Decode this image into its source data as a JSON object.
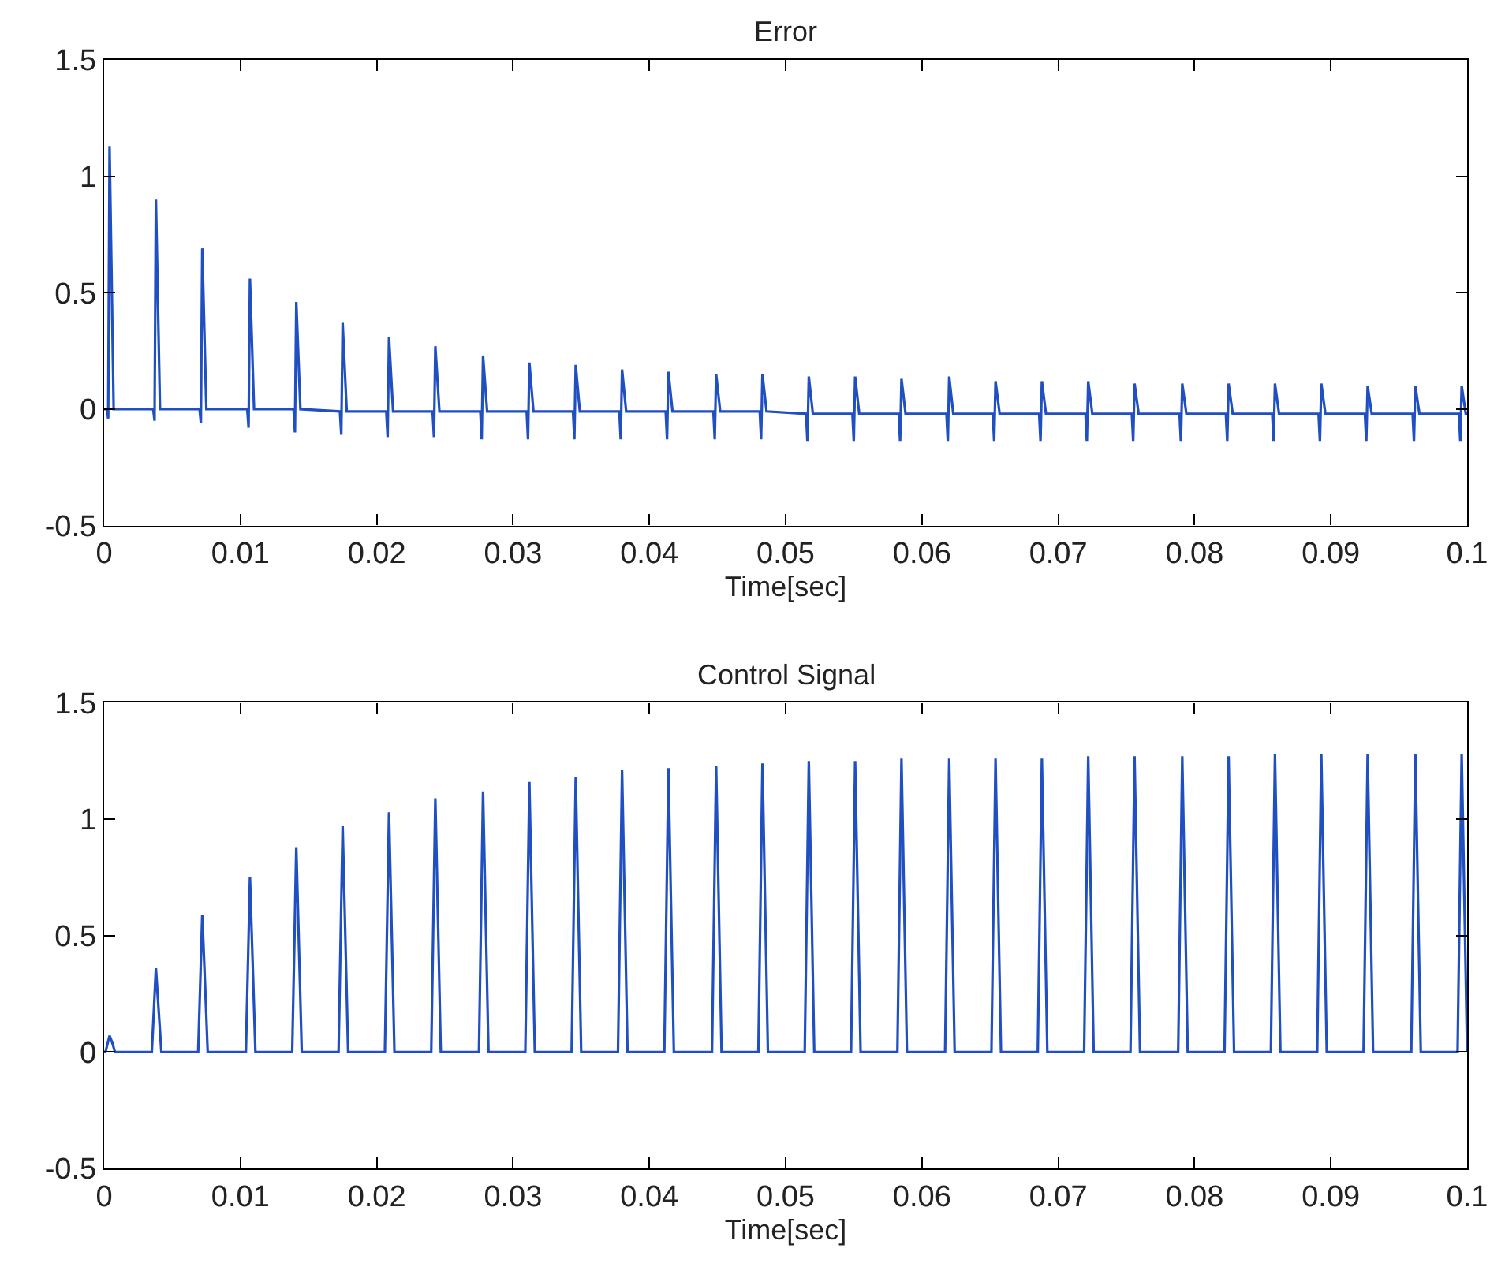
{
  "chart_data": [
    {
      "type": "line",
      "title": "Error",
      "xlabel": "Time[sec]",
      "xlim": [
        0,
        0.1
      ],
      "xticks": [
        0,
        0.01,
        0.02,
        0.03,
        0.04,
        0.05,
        0.06,
        0.07,
        0.08,
        0.09,
        0.1
      ],
      "ylim": [
        -0.5,
        1.5
      ],
      "yticks": [
        -0.5,
        0,
        0.5,
        1,
        1.5
      ],
      "marker": "none",
      "line_style": "solid",
      "series": [
        {
          "color": "#1f4fc0",
          "x": [
            0,
            0.0002,
            0.0003,
            0.0004,
            0.0007,
            0.0036,
            0.0037,
            0.0038,
            0.0041,
            0.007,
            0.0071,
            0.0072,
            0.0075,
            0.0105,
            0.0106,
            0.0107,
            0.011,
            0.0139,
            0.014,
            0.0141,
            0.0144,
            0.0173,
            0.0174,
            0.0175,
            0.0178,
            0.0207,
            0.0208,
            0.0209,
            0.0212,
            0.0241,
            0.0242,
            0.0243,
            0.0246,
            0.0276,
            0.0277,
            0.0278,
            0.0281,
            0.031,
            0.0311,
            0.0312,
            0.0315,
            0.0344,
            0.0345,
            0.0346,
            0.0349,
            0.0378,
            0.0379,
            0.038,
            0.0383,
            0.0412,
            0.0413,
            0.0414,
            0.0417,
            0.0447,
            0.0448,
            0.0449,
            0.0452,
            0.0481,
            0.0482,
            0.0483,
            0.0486,
            0.0515,
            0.0516,
            0.0517,
            0.052,
            0.0549,
            0.055,
            0.0551,
            0.0554,
            0.0583,
            0.0584,
            0.0585,
            0.0588,
            0.0618,
            0.0619,
            0.062,
            0.0623,
            0.0652,
            0.0653,
            0.0654,
            0.0657,
            0.0686,
            0.0687,
            0.0688,
            0.0691,
            0.072,
            0.0721,
            0.0722,
            0.0725,
            0.0754,
            0.0755,
            0.0756,
            0.0759,
            0.0789,
            0.079,
            0.0791,
            0.0794,
            0.0823,
            0.0824,
            0.0825,
            0.0828,
            0.0857,
            0.0858,
            0.0859,
            0.0862,
            0.0891,
            0.0892,
            0.0893,
            0.0896,
            0.0925,
            0.0926,
            0.0927,
            0.093,
            0.096,
            0.0961,
            0.0962,
            0.0965,
            0.0994,
            0.0995,
            0.0996,
            0.0999,
            0.1
          ],
          "values": [
            0,
            0,
            -0.04,
            1.13,
            0,
            0,
            -0.05,
            0.9,
            0,
            0,
            -0.06,
            0.69,
            0,
            0,
            -0.08,
            0.56,
            0,
            0,
            -0.1,
            0.46,
            0,
            -0.01,
            -0.11,
            0.37,
            -0.01,
            -0.01,
            -0.12,
            0.31,
            -0.01,
            -0.01,
            -0.12,
            0.27,
            -0.01,
            -0.01,
            -0.13,
            0.23,
            -0.01,
            -0.01,
            -0.13,
            0.2,
            -0.01,
            -0.01,
            -0.13,
            0.19,
            -0.01,
            -0.01,
            -0.13,
            0.17,
            -0.01,
            -0.01,
            -0.13,
            0.16,
            -0.01,
            -0.01,
            -0.13,
            0.15,
            -0.01,
            -0.01,
            -0.13,
            0.15,
            -0.01,
            -0.02,
            -0.14,
            0.14,
            -0.02,
            -0.02,
            -0.14,
            0.14,
            -0.02,
            -0.02,
            -0.14,
            0.13,
            -0.02,
            -0.02,
            -0.14,
            0.14,
            -0.02,
            -0.02,
            -0.14,
            0.12,
            -0.02,
            -0.02,
            -0.14,
            0.12,
            -0.02,
            -0.02,
            -0.14,
            0.12,
            -0.02,
            -0.02,
            -0.14,
            0.11,
            -0.02,
            -0.02,
            -0.14,
            0.11,
            -0.02,
            -0.02,
            -0.14,
            0.11,
            -0.02,
            -0.02,
            -0.14,
            0.11,
            -0.02,
            -0.02,
            -0.14,
            0.11,
            -0.02,
            -0.02,
            -0.14,
            0.1,
            -0.02,
            -0.02,
            -0.14,
            0.1,
            -0.02,
            -0.02,
            -0.14,
            0.1,
            -0.02,
            -0.02
          ]
        }
      ]
    },
    {
      "type": "line",
      "title": "Control Signal",
      "xlabel": "Time[sec]",
      "xlim": [
        0,
        0.1
      ],
      "xticks": [
        0,
        0.01,
        0.02,
        0.03,
        0.04,
        0.05,
        0.06,
        0.07,
        0.08,
        0.09,
        0.1
      ],
      "ylim": [
        -0.5,
        1.5
      ],
      "yticks": [
        -0.5,
        0,
        0.5,
        1,
        1.5
      ],
      "marker": "none",
      "line_style": "solid",
      "series": [
        {
          "color": "#1f4fc0",
          "x": [
            0,
            0.0001,
            0.0004,
            0.0006,
            0.0008,
            0.0035,
            0.0038,
            0.004,
            0.0042,
            0.0069,
            0.0072,
            0.0074,
            0.0076,
            0.0104,
            0.0107,
            0.0109,
            0.0111,
            0.0138,
            0.0141,
            0.0143,
            0.0145,
            0.0172,
            0.0175,
            0.0177,
            0.0179,
            0.0206,
            0.0209,
            0.0211,
            0.0213,
            0.024,
            0.0243,
            0.0245,
            0.0247,
            0.0275,
            0.0278,
            0.028,
            0.0282,
            0.0309,
            0.0312,
            0.0314,
            0.0316,
            0.0343,
            0.0346,
            0.0348,
            0.035,
            0.0377,
            0.038,
            0.0382,
            0.0384,
            0.0411,
            0.0414,
            0.0416,
            0.0418,
            0.0446,
            0.0449,
            0.0451,
            0.0453,
            0.048,
            0.0483,
            0.0485,
            0.0487,
            0.0514,
            0.0517,
            0.0519,
            0.0521,
            0.0548,
            0.0551,
            0.0553,
            0.0555,
            0.0582,
            0.0585,
            0.0587,
            0.0589,
            0.0617,
            0.062,
            0.0622,
            0.0624,
            0.0651,
            0.0654,
            0.0656,
            0.0658,
            0.0685,
            0.0688,
            0.069,
            0.0692,
            0.0719,
            0.0722,
            0.0724,
            0.0726,
            0.0753,
            0.0756,
            0.0758,
            0.076,
            0.0788,
            0.0791,
            0.0793,
            0.0795,
            0.0822,
            0.0825,
            0.0827,
            0.0829,
            0.0856,
            0.0859,
            0.0861,
            0.0863,
            0.089,
            0.0893,
            0.0895,
            0.0897,
            0.0924,
            0.0927,
            0.0929,
            0.0931,
            0.0959,
            0.0962,
            0.0964,
            0.0966,
            0.0993,
            0.0996,
            0.0998,
            0.1
          ],
          "values": [
            0,
            0,
            0.07,
            0.04,
            0,
            0,
            0.36,
            0.18,
            0,
            0,
            0.59,
            0.3,
            0,
            0,
            0.75,
            0.38,
            0,
            0,
            0.88,
            0.44,
            0,
            0,
            0.97,
            0.49,
            0,
            0,
            1.03,
            0.52,
            0,
            0,
            1.09,
            0.55,
            0,
            0,
            1.12,
            0.56,
            0,
            0,
            1.16,
            0.58,
            0,
            0,
            1.18,
            0.59,
            0,
            0,
            1.21,
            0.61,
            0,
            0,
            1.22,
            0.61,
            0,
            0,
            1.23,
            0.62,
            0,
            0,
            1.24,
            0.62,
            0,
            0,
            1.25,
            0.63,
            0,
            0,
            1.25,
            0.63,
            0,
            0,
            1.26,
            0.63,
            0,
            0,
            1.26,
            0.63,
            0,
            0,
            1.26,
            0.63,
            0,
            0,
            1.26,
            0.63,
            0,
            0,
            1.27,
            0.64,
            0,
            0,
            1.27,
            0.64,
            0,
            0,
            1.27,
            0.64,
            0,
            0,
            1.27,
            0.64,
            0,
            0,
            1.28,
            0.64,
            0,
            0,
            1.28,
            0.64,
            0,
            0,
            1.28,
            0.64,
            0,
            0,
            1.28,
            0.64,
            0,
            0,
            1.28,
            0.64,
            0
          ]
        }
      ]
    }
  ]
}
